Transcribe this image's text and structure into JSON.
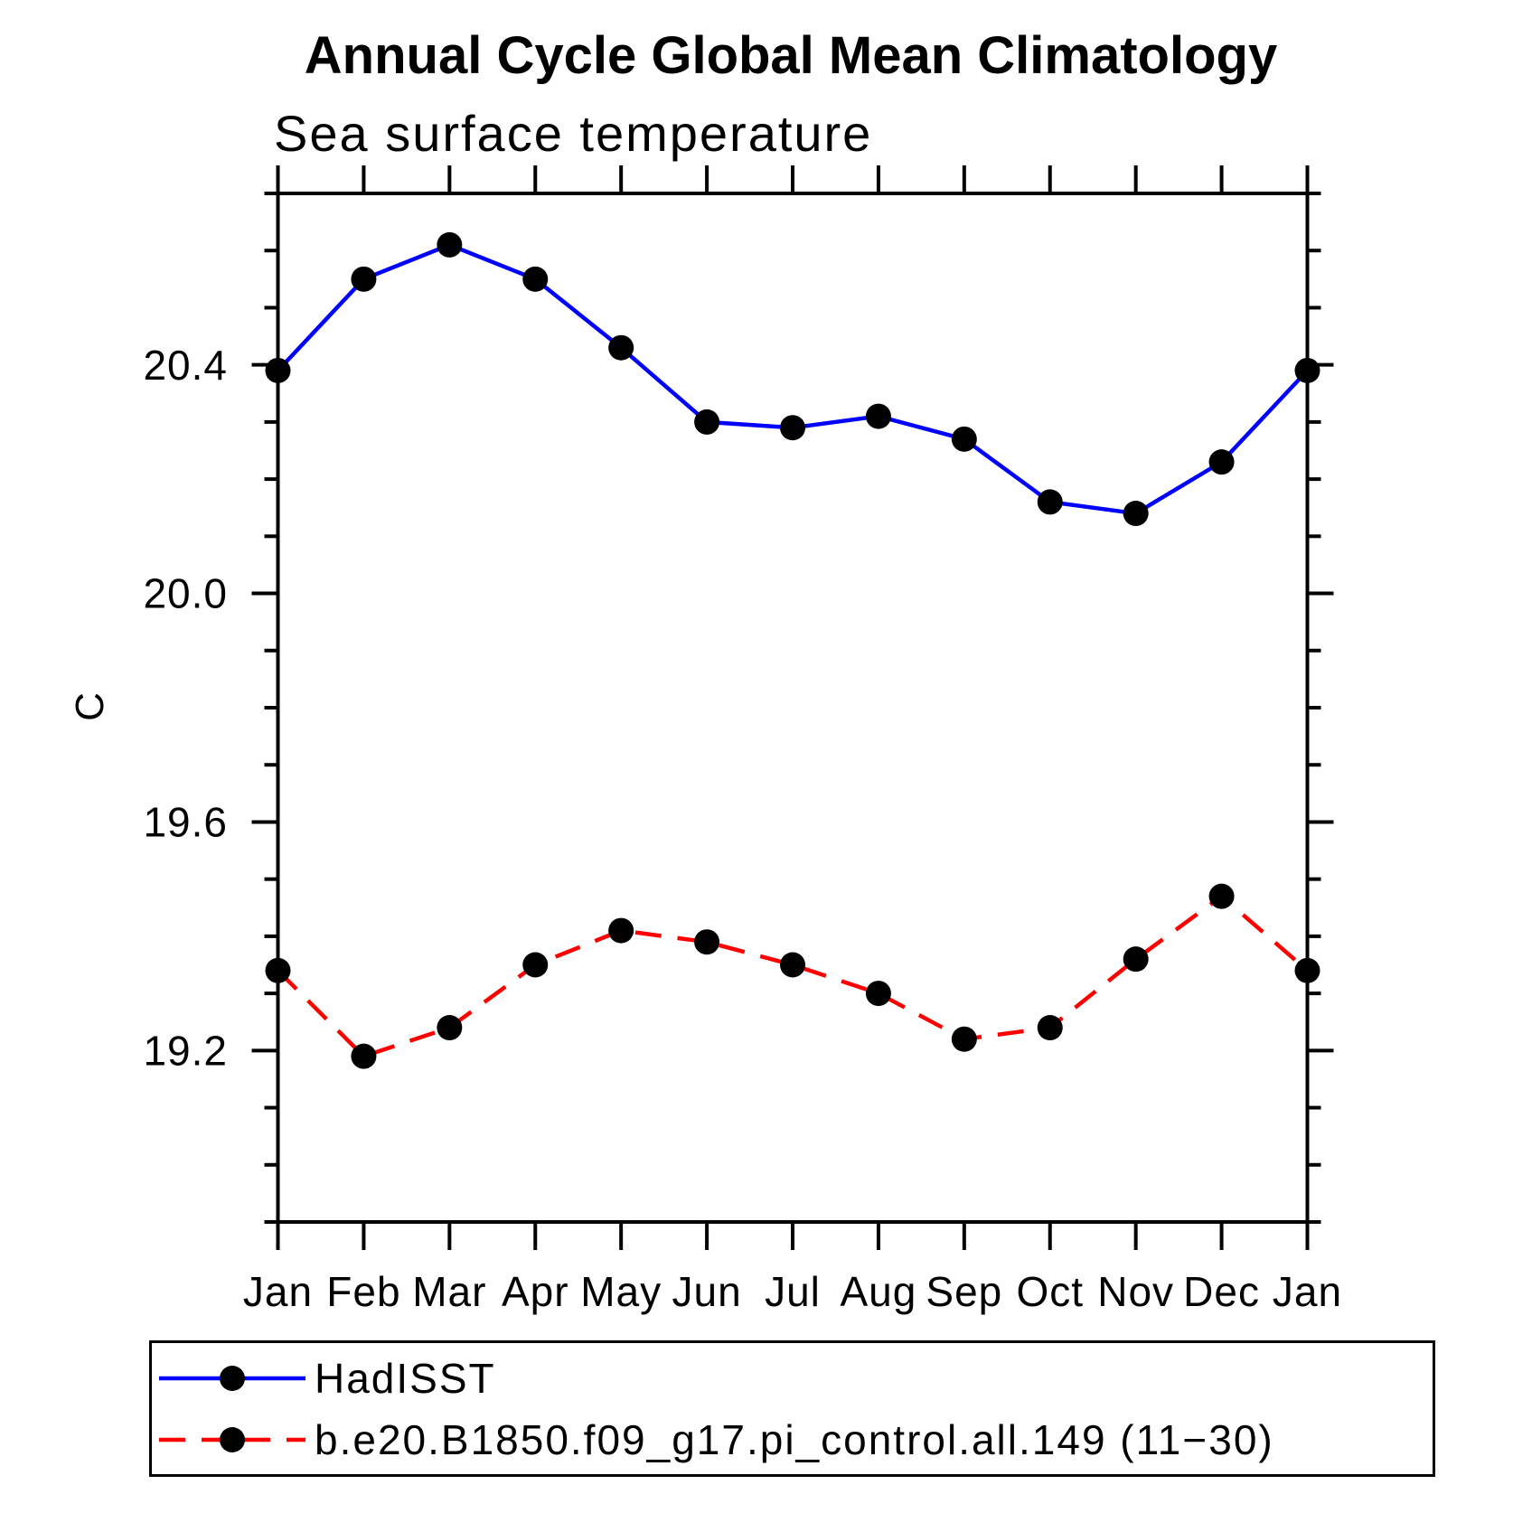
{
  "chart_data": {
    "type": "line",
    "title": "Annual Cycle Global Mean Climatology",
    "subtitle": "Sea surface temperature",
    "ylabel": "C",
    "xlabel": "",
    "categories": [
      "Jan",
      "Feb",
      "Mar",
      "Apr",
      "May",
      "Jun",
      "Jul",
      "Aug",
      "Sep",
      "Oct",
      "Nov",
      "Dec",
      "Jan"
    ],
    "series": [
      {
        "name": "HadISST",
        "color": "#0000ff",
        "line_style": "solid",
        "marker": "filled-circle",
        "marker_color": "#000000",
        "values": [
          20.39,
          20.55,
          20.61,
          20.55,
          20.43,
          20.3,
          20.29,
          20.31,
          20.27,
          20.16,
          20.14,
          20.23,
          20.39
        ]
      },
      {
        "name": "b.e20.B1850.f09_g17.pi_control.all.149 (11−30)",
        "color": "#ff0000",
        "line_style": "dashed",
        "marker": "filled-circle",
        "marker_color": "#000000",
        "values": [
          19.34,
          19.19,
          19.24,
          19.35,
          19.41,
          19.39,
          19.35,
          19.3,
          19.22,
          19.24,
          19.36,
          19.47,
          19.34
        ]
      }
    ],
    "ylim": [
      18.9,
      20.7
    ],
    "ytick_labels": [
      "19.2",
      "19.6",
      "20.0",
      "20.4"
    ],
    "ytick_minor_step": 0.1,
    "grid": false,
    "legend_position": "bottom-left-box"
  },
  "legend": {
    "entries": [
      {
        "label": "HadISST",
        "color": "#0000ff",
        "line_style": "solid"
      },
      {
        "label": "b.e20.B1850.f09_g17.pi_control.all.149 (11−30)",
        "color": "#ff0000",
        "line_style": "dashed"
      }
    ]
  }
}
